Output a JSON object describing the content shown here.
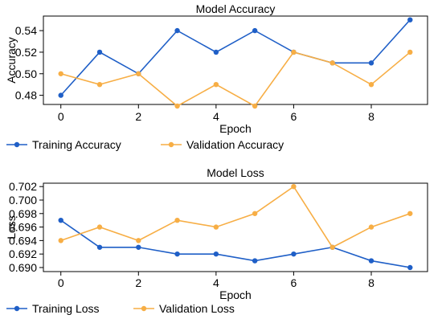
{
  "chart_data": [
    {
      "type": "line",
      "title": "Model Accuracy",
      "xlabel": "Epoch",
      "ylabel": "Accuracy",
      "x": [
        0,
        1,
        2,
        3,
        4,
        5,
        6,
        7,
        8,
        9
      ],
      "xlim": [
        -0.45,
        9.45
      ],
      "ylim": [
        0.4715,
        0.5535
      ],
      "xticks": [
        0,
        2,
        4,
        6,
        8
      ],
      "yticks": [
        0.48,
        0.5,
        0.52,
        0.54
      ],
      "ytick_labels": [
        "0.48",
        "0.50",
        "0.52",
        "0.54"
      ],
      "grid": false,
      "legend_position": "bottom",
      "series": [
        {
          "name": "Training Accuracy",
          "color": "#1f5fc7",
          "values": [
            0.48,
            0.52,
            0.5,
            0.54,
            0.52,
            0.54,
            0.52,
            0.51,
            0.51,
            0.55
          ]
        },
        {
          "name": "Validation Accuracy",
          "color": "#f7ae45",
          "values": [
            0.5,
            0.49,
            0.5,
            0.47,
            0.49,
            0.47,
            0.52,
            0.51,
            0.49,
            0.52
          ]
        }
      ]
    },
    {
      "type": "line",
      "title": "Model Loss",
      "xlabel": "Epoch",
      "ylabel": "Loss",
      "x": [
        0,
        1,
        2,
        3,
        4,
        5,
        6,
        7,
        8,
        9
      ],
      "xlim": [
        -0.45,
        9.45
      ],
      "ylim": [
        0.6894,
        0.7025
      ],
      "xticks": [
        0,
        2,
        4,
        6,
        8
      ],
      "yticks": [
        0.69,
        0.692,
        0.694,
        0.696,
        0.698,
        0.7,
        0.702
      ],
      "ytick_labels": [
        "0.690",
        "0.692",
        "0.694",
        "0.696",
        "0.698",
        "0.700",
        "0.702"
      ],
      "grid": false,
      "legend_position": "bottom",
      "series": [
        {
          "name": "Training Loss",
          "color": "#1f5fc7",
          "values": [
            0.697,
            0.693,
            0.693,
            0.692,
            0.692,
            0.691,
            0.692,
            0.693,
            0.691,
            0.69
          ]
        },
        {
          "name": "Validation Loss",
          "color": "#f7ae45",
          "values": [
            0.694,
            0.696,
            0.694,
            0.697,
            0.696,
            0.698,
            0.702,
            0.693,
            0.696,
            0.698
          ]
        }
      ]
    }
  ]
}
